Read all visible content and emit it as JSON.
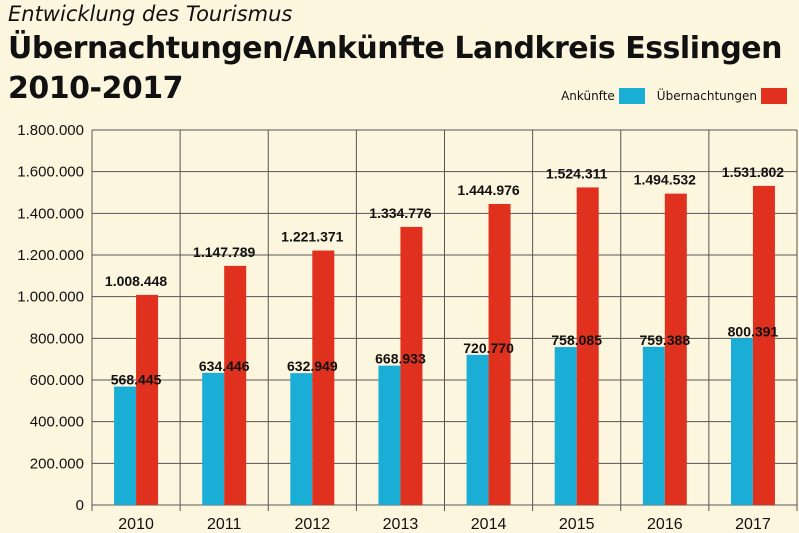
{
  "kicker": "Entwicklung des Tourismus",
  "colors": {
    "background": "#fdf6df",
    "ankuenfte": "#1aaed6",
    "uebernachtungen": "#e0311f",
    "grid": "#555555"
  },
  "chart_data": {
    "type": "bar",
    "title": "Übernachtungen/Ankünfte Landkreis Esslingen",
    "subtitle": "2010-2017",
    "categories": [
      "2010",
      "2011",
      "2012",
      "2013",
      "2014",
      "2015",
      "2016",
      "2017"
    ],
    "series": [
      {
        "name": "Ankünfte",
        "values": [
          568445,
          634446,
          632949,
          668933,
          720770,
          758085,
          759388,
          800391
        ],
        "labels": [
          "568.445",
          "634.446",
          "632.949",
          "668.933",
          "720.770",
          "758.085",
          "759.388",
          "800.391"
        ]
      },
      {
        "name": "Übernachtungen",
        "values": [
          1008448,
          1147789,
          1221371,
          1334776,
          1444976,
          1524311,
          1494532,
          1531802
        ],
        "labels": [
          "1.008.448",
          "1.147.789",
          "1.221.371",
          "1.334.776",
          "1.444.976",
          "1.524.311",
          "1.494.532",
          "1.531.802"
        ]
      }
    ],
    "ylim": [
      0,
      1800000
    ],
    "yticks": [
      0,
      200000,
      400000,
      600000,
      800000,
      1000000,
      1200000,
      1400000,
      1600000,
      1800000
    ],
    "ytick_labels": [
      "0",
      "200.000",
      "400.000",
      "600.000",
      "800.000",
      "1.000.000",
      "1.200.000",
      "1.400.000",
      "1.600.000",
      "1.800.000"
    ],
    "grid": true,
    "legend_position": "top-right"
  }
}
